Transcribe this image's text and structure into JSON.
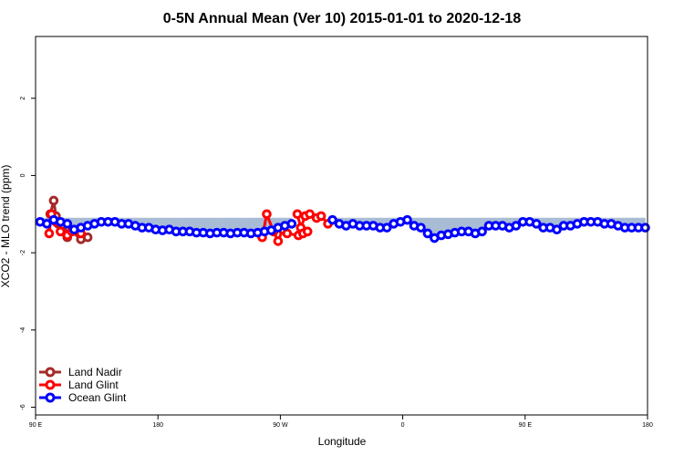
{
  "chart_data": {
    "type": "line",
    "title": "0-5N Annual Mean (Ver 10)   2015-01-01 to 2020-12-18",
    "xlabel": "Longitude",
    "ylabel": "XCO2 - MLO trend (ppm)",
    "xlim": [
      -90,
      180
    ],
    "ylim": [
      -6.2,
      3.6
    ],
    "x_ticks": [
      -90,
      -36,
      18,
      72,
      126,
      180
    ],
    "x_tick_labels": [
      "90 E",
      "180",
      "90 W",
      "0",
      "90 E",
      "180"
    ],
    "y_ticks": [
      -6,
      -4,
      -2,
      0,
      2
    ],
    "y_tick_labels": [
      "-6",
      "-4",
      "-2",
      "0",
      "2"
    ],
    "reference_level": -1.1,
    "colors": {
      "land_nadir": "#a52a2a",
      "land_glint": "#ff0000",
      "ocean_glint": "#0000ff",
      "fill_below": "#a9bcd6",
      "fill_above": "#ffd580"
    },
    "legend_position": "bottom-left",
    "series": [
      {
        "name": "Land Nadir",
        "color": "#a52a2a",
        "x": [
          -83.5,
          -82,
          -81,
          -80,
          -78,
          -76,
          -74,
          -70,
          -67
        ],
        "values": [
          -1.0,
          -0.65,
          -1.05,
          -1.25,
          -1.45,
          -1.6,
          -1.45,
          -1.65,
          -1.6
        ]
      },
      {
        "name": "Land Glint",
        "color": "#ff0000",
        "x": [
          -84,
          -83,
          -81,
          -79,
          -76,
          -74,
          -70,
          25.5,
          27,
          29,
          31,
          34,
          36,
          39,
          10,
          12,
          15,
          17,
          19,
          21,
          26,
          28,
          30
        ],
        "values": [
          -1.5,
          -1.0,
          -1.2,
          -1.45,
          -1.55,
          -1.45,
          -1.5,
          -1.0,
          -1.35,
          -1.05,
          -1.0,
          -1.1,
          -1.05,
          -1.25,
          -1.6,
          -1.0,
          -1.45,
          -1.7,
          -1.4,
          -1.5,
          -1.55,
          -1.5,
          -1.45
        ]
      },
      {
        "name": "Ocean Glint",
        "color": "#0000ff",
        "x": [
          -88,
          -85,
          -82,
          -79,
          -76,
          -73,
          -70,
          -67,
          -64,
          -61,
          -58,
          -55,
          -52,
          -49,
          -46,
          -43,
          -40,
          -37,
          -34,
          -31,
          -28,
          -25,
          -22,
          -19,
          -16,
          -13,
          -10,
          -7,
          -4,
          -1,
          2,
          5,
          8,
          11,
          14,
          17,
          20,
          23,
          41,
          44,
          47,
          50,
          53,
          56,
          59,
          62,
          65,
          68,
          71,
          74,
          77,
          80,
          83,
          86,
          89,
          92,
          95,
          98,
          101,
          104,
          107,
          110,
          113,
          116,
          119,
          122,
          125,
          128,
          131,
          134,
          137,
          140,
          143,
          146,
          149,
          152,
          155,
          158,
          161,
          164,
          167,
          170,
          173,
          176,
          179
        ],
        "values": [
          -1.2,
          -1.25,
          -1.15,
          -1.2,
          -1.25,
          -1.4,
          -1.35,
          -1.3,
          -1.25,
          -1.2,
          -1.2,
          -1.2,
          -1.25,
          -1.25,
          -1.3,
          -1.35,
          -1.35,
          -1.4,
          -1.42,
          -1.4,
          -1.45,
          -1.45,
          -1.45,
          -1.48,
          -1.48,
          -1.5,
          -1.48,
          -1.48,
          -1.5,
          -1.48,
          -1.48,
          -1.5,
          -1.48,
          -1.45,
          -1.42,
          -1.35,
          -1.3,
          -1.25,
          -1.15,
          -1.25,
          -1.3,
          -1.25,
          -1.3,
          -1.3,
          -1.3,
          -1.35,
          -1.35,
          -1.25,
          -1.2,
          -1.15,
          -1.3,
          -1.35,
          -1.5,
          -1.62,
          -1.55,
          -1.52,
          -1.48,
          -1.45,
          -1.45,
          -1.5,
          -1.45,
          -1.3,
          -1.3,
          -1.3,
          -1.35,
          -1.3,
          -1.2,
          -1.2,
          -1.25,
          -1.35,
          -1.35,
          -1.4,
          -1.3,
          -1.3,
          -1.25,
          -1.2,
          -1.2,
          -1.2,
          -1.25,
          -1.25,
          -1.3,
          -1.35,
          -1.35,
          -1.35,
          -1.35
        ]
      }
    ]
  }
}
